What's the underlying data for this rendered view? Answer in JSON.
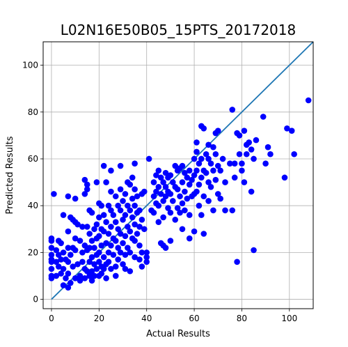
{
  "chart_data": {
    "type": "scatter",
    "title": "L02N16E50B05_15PTS_20172018",
    "xlabel": "Actual Results",
    "ylabel": "Predicted Results",
    "xlim": [
      -3.5,
      110
    ],
    "ylim": [
      -4,
      110
    ],
    "xticks": [
      0,
      20,
      40,
      60,
      80,
      100
    ],
    "yticks": [
      0,
      20,
      40,
      60,
      80,
      100
    ],
    "grid": true,
    "point_color": "#0000ff",
    "line_color": "#1f77b4",
    "reference_line": {
      "x": [
        0,
        110
      ],
      "y": [
        0,
        110
      ]
    },
    "points": [
      [
        0,
        26
      ],
      [
        0,
        25
      ],
      [
        0,
        22
      ],
      [
        0,
        19
      ],
      [
        0,
        17
      ],
      [
        0,
        16
      ],
      [
        0,
        13
      ],
      [
        0,
        10
      ],
      [
        0,
        9
      ],
      [
        1,
        45
      ],
      [
        2,
        21
      ],
      [
        2,
        16
      ],
      [
        2,
        10
      ],
      [
        3,
        25
      ],
      [
        3,
        19
      ],
      [
        3,
        14
      ],
      [
        4,
        24
      ],
      [
        4,
        17
      ],
      [
        4,
        11
      ],
      [
        5,
        36
      ],
      [
        5,
        20
      ],
      [
        5,
        13
      ],
      [
        5,
        6
      ],
      [
        6,
        17
      ],
      [
        6,
        9
      ],
      [
        7,
        44
      ],
      [
        7,
        29
      ],
      [
        7,
        22
      ],
      [
        7,
        16
      ],
      [
        7,
        11
      ],
      [
        7,
        5
      ],
      [
        8,
        35
      ],
      [
        8,
        19
      ],
      [
        8,
        7
      ],
      [
        9,
        34
      ],
      [
        9,
        22
      ],
      [
        9,
        14
      ],
      [
        10,
        43
      ],
      [
        10,
        33
      ],
      [
        10,
        26
      ],
      [
        10,
        21
      ],
      [
        10,
        9
      ],
      [
        11,
        32
      ],
      [
        11,
        15
      ],
      [
        12,
        25
      ],
      [
        12,
        10
      ],
      [
        12,
        8
      ],
      [
        13,
        31
      ],
      [
        13,
        20
      ],
      [
        13,
        16
      ],
      [
        14,
        51
      ],
      [
        14,
        45
      ],
      [
        14,
        23
      ],
      [
        14,
        13
      ],
      [
        14,
        9
      ],
      [
        15,
        49
      ],
      [
        15,
        47
      ],
      [
        15,
        31
      ],
      [
        15,
        21
      ],
      [
        15,
        12
      ],
      [
        16,
        38
      ],
      [
        16,
        28
      ],
      [
        16,
        22
      ],
      [
        16,
        16
      ],
      [
        16,
        10
      ],
      [
        17,
        37
      ],
      [
        17,
        25
      ],
      [
        17,
        18
      ],
      [
        17,
        12
      ],
      [
        17,
        8
      ],
      [
        18,
        30
      ],
      [
        18,
        22
      ],
      [
        18,
        15
      ],
      [
        18,
        10
      ],
      [
        19,
        50
      ],
      [
        19,
        32
      ],
      [
        19,
        26
      ],
      [
        19,
        19
      ],
      [
        19,
        13
      ],
      [
        20,
        41
      ],
      [
        20,
        35
      ],
      [
        20,
        27
      ],
      [
        20,
        20
      ],
      [
        20,
        16
      ],
      [
        20,
        10
      ],
      [
        21,
        40
      ],
      [
        21,
        30
      ],
      [
        21,
        23
      ],
      [
        21,
        14
      ],
      [
        21,
        11
      ],
      [
        22,
        57
      ],
      [
        22,
        36
      ],
      [
        22,
        29
      ],
      [
        22,
        18
      ],
      [
        22,
        13
      ],
      [
        23,
        50
      ],
      [
        23,
        33
      ],
      [
        23,
        24
      ],
      [
        23,
        15
      ],
      [
        23,
        9
      ],
      [
        24,
        40
      ],
      [
        24,
        28
      ],
      [
        24,
        20
      ],
      [
        24,
        16
      ],
      [
        25,
        55
      ],
      [
        25,
        46
      ],
      [
        25,
        38
      ],
      [
        25,
        31
      ],
      [
        25,
        23
      ],
      [
        25,
        13
      ],
      [
        26,
        36
      ],
      [
        26,
        26
      ],
      [
        26,
        19
      ],
      [
        27,
        44
      ],
      [
        27,
        33
      ],
      [
        27,
        25
      ],
      [
        27,
        14
      ],
      [
        27,
        10
      ],
      [
        28,
        40
      ],
      [
        28,
        30
      ],
      [
        28,
        22
      ],
      [
        28,
        17
      ],
      [
        29,
        57
      ],
      [
        29,
        47
      ],
      [
        29,
        38
      ],
      [
        29,
        28
      ],
      [
        29,
        20
      ],
      [
        30,
        42
      ],
      [
        30,
        34
      ],
      [
        30,
        24
      ],
      [
        30,
        15
      ],
      [
        31,
        45
      ],
      [
        31,
        36
      ],
      [
        31,
        27
      ],
      [
        31,
        19
      ],
      [
        31,
        13
      ],
      [
        32,
        50
      ],
      [
        32,
        40
      ],
      [
        32,
        31
      ],
      [
        32,
        22
      ],
      [
        33,
        49
      ],
      [
        33,
        38
      ],
      [
        33,
        29
      ],
      [
        33,
        20
      ],
      [
        33,
        12
      ],
      [
        34,
        52
      ],
      [
        34,
        43
      ],
      [
        34,
        35
      ],
      [
        34,
        26
      ],
      [
        35,
        58
      ],
      [
        35,
        47
      ],
      [
        35,
        40
      ],
      [
        35,
        32
      ],
      [
        35,
        25
      ],
      [
        35,
        18
      ],
      [
        36,
        44
      ],
      [
        36,
        37
      ],
      [
        36,
        28
      ],
      [
        37,
        38
      ],
      [
        37,
        31
      ],
      [
        37,
        23
      ],
      [
        37,
        17
      ],
      [
        38,
        45
      ],
      [
        38,
        34
      ],
      [
        38,
        20
      ],
      [
        38,
        14
      ],
      [
        39,
        46
      ],
      [
        39,
        30
      ],
      [
        40,
        20
      ],
      [
        40,
        18
      ],
      [
        40,
        16
      ],
      [
        41,
        60
      ],
      [
        42,
        38
      ],
      [
        43,
        50
      ],
      [
        43,
        44
      ],
      [
        43,
        37
      ],
      [
        44,
        53
      ],
      [
        44,
        46
      ],
      [
        44,
        41
      ],
      [
        45,
        55
      ],
      [
        45,
        48
      ],
      [
        45,
        40
      ],
      [
        45,
        33
      ],
      [
        46,
        52
      ],
      [
        46,
        45
      ],
      [
        46,
        24
      ],
      [
        47,
        50
      ],
      [
        47,
        42
      ],
      [
        47,
        35
      ],
      [
        47,
        23
      ],
      [
        48,
        54
      ],
      [
        48,
        48
      ],
      [
        48,
        44
      ],
      [
        48,
        22
      ],
      [
        49,
        52
      ],
      [
        49,
        46
      ],
      [
        49,
        39
      ],
      [
        50,
        53
      ],
      [
        50,
        45
      ],
      [
        50,
        37
      ],
      [
        50,
        25
      ],
      [
        51,
        50
      ],
      [
        51,
        42
      ],
      [
        52,
        57
      ],
      [
        52,
        48
      ],
      [
        52,
        34
      ],
      [
        53,
        55
      ],
      [
        53,
        47
      ],
      [
        53,
        39
      ],
      [
        54,
        56
      ],
      [
        54,
        44
      ],
      [
        54,
        37
      ],
      [
        55,
        57
      ],
      [
        55,
        50
      ],
      [
        55,
        41
      ],
      [
        55,
        30
      ],
      [
        56,
        54
      ],
      [
        56,
        46
      ],
      [
        56,
        38
      ],
      [
        57,
        52
      ],
      [
        57,
        43
      ],
      [
        58,
        55
      ],
      [
        58,
        49
      ],
      [
        58,
        36
      ],
      [
        58,
        26
      ],
      [
        59,
        51
      ],
      [
        59,
        44
      ],
      [
        60,
        60
      ],
      [
        60,
        53
      ],
      [
        60,
        45
      ],
      [
        60,
        29
      ],
      [
        61,
        67
      ],
      [
        61,
        63
      ],
      [
        61,
        55
      ],
      [
        61,
        46
      ],
      [
        62,
        58
      ],
      [
        62,
        49
      ],
      [
        62,
        40
      ],
      [
        63,
        74
      ],
      [
        63,
        60
      ],
      [
        63,
        52
      ],
      [
        63,
        36
      ],
      [
        64,
        73
      ],
      [
        64,
        55
      ],
      [
        64,
        44
      ],
      [
        64,
        28
      ],
      [
        65,
        62
      ],
      [
        65,
        54
      ],
      [
        66,
        66
      ],
      [
        66,
        60
      ],
      [
        66,
        50
      ],
      [
        66,
        42
      ],
      [
        67,
        58
      ],
      [
        67,
        48
      ],
      [
        68,
        65
      ],
      [
        68,
        55
      ],
      [
        68,
        38
      ],
      [
        69,
        71
      ],
      [
        69,
        62
      ],
      [
        69,
        51
      ],
      [
        70,
        72
      ],
      [
        70,
        57
      ],
      [
        70,
        45
      ],
      [
        71,
        55
      ],
      [
        71,
        43
      ],
      [
        72,
        60
      ],
      [
        73,
        50
      ],
      [
        73,
        38
      ],
      [
        75,
        58
      ],
      [
        76,
        81
      ],
      [
        76,
        38
      ],
      [
        77,
        58
      ],
      [
        77,
        52
      ],
      [
        78,
        71
      ],
      [
        78,
        16
      ],
      [
        79,
        70
      ],
      [
        79,
        62
      ],
      [
        80,
        58
      ],
      [
        80,
        55
      ],
      [
        81,
        72
      ],
      [
        81,
        50
      ],
      [
        82,
        66
      ],
      [
        82,
        62
      ],
      [
        83,
        67
      ],
      [
        84,
        64
      ],
      [
        84,
        46
      ],
      [
        85,
        60
      ],
      [
        85,
        21
      ],
      [
        86,
        68
      ],
      [
        89,
        78
      ],
      [
        90,
        58
      ],
      [
        91,
        65
      ],
      [
        92,
        62
      ],
      [
        98,
        52
      ],
      [
        99,
        73
      ],
      [
        101,
        72
      ],
      [
        102,
        62
      ],
      [
        108,
        85
      ]
    ]
  }
}
